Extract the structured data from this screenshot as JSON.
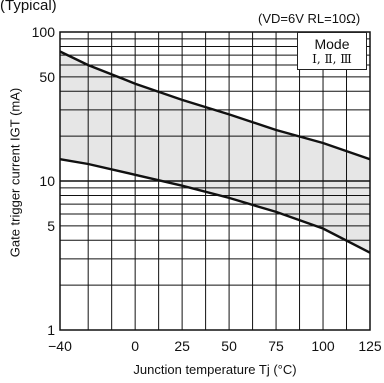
{
  "chart_data": {
    "type": "area",
    "corner_title": "(Typical)",
    "conditions": "(VD=6V RL=10Ω)",
    "legend": {
      "title": "Mode",
      "modes": "Ⅰ, Ⅱ, Ⅲ"
    },
    "xlabel": "Junction temperature Tj (°C)",
    "ylabel": "Gate trigger current IGT (mA)",
    "x_scale": "linear",
    "y_scale": "log",
    "xlim": [
      -40,
      125
    ],
    "ylim": [
      1,
      100
    ],
    "x_ticks": [
      -40,
      0,
      25,
      50,
      75,
      100,
      125
    ],
    "y_ticks": [
      1,
      5,
      10,
      50,
      100
    ],
    "band_color": "#e6e6e6",
    "series": [
      {
        "x": [
          -40,
          -25,
          0,
          25,
          50,
          75,
          100,
          125
        ],
        "y": [
          74,
          60,
          45,
          35,
          28,
          22,
          18,
          14
        ]
      },
      {
        "x": [
          -40,
          -25,
          0,
          25,
          50,
          75,
          100,
          125
        ],
        "y": [
          14,
          13,
          11,
          9.3,
          7.7,
          6.2,
          4.8,
          3.3
        ]
      }
    ]
  }
}
